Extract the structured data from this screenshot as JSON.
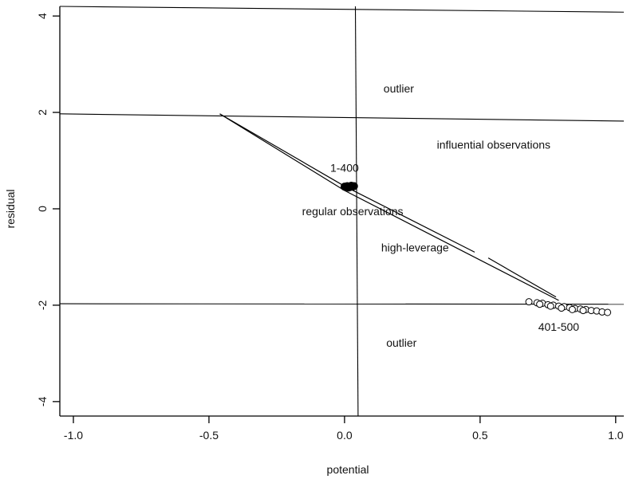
{
  "chart_data": {
    "type": "scatter",
    "title": "",
    "xlabel": "potential",
    "ylabel": "residual",
    "xlim": [
      -1.05,
      1.03
    ],
    "ylim": [
      -4.3,
      4.2
    ],
    "grid": false,
    "x_ticks": [
      {
        "value": -1.0,
        "label": "-1.0"
      },
      {
        "value": -0.5,
        "label": "-0.5"
      },
      {
        "value": 0.0,
        "label": "0.0"
      },
      {
        "value": 0.5,
        "label": "0.5"
      },
      {
        "value": 1.0,
        "label": "1.0"
      }
    ],
    "y_ticks": [
      {
        "value": 4,
        "label": "4"
      },
      {
        "value": 2,
        "label": "2"
      },
      {
        "value": 0,
        "label": "0"
      },
      {
        "value": -2,
        "label": "-2"
      },
      {
        "value": -4,
        "label": "-4"
      }
    ],
    "reference_lines": [
      {
        "name": "upper-cutoff",
        "x1": -1.05,
        "y1": 4.2,
        "x2": 1.03,
        "y2": 4.08
      },
      {
        "name": "upper-residual-cutoff",
        "x1": -1.05,
        "y1": 1.97,
        "x2": 1.03,
        "y2": 1.82
      },
      {
        "name": "lower-residual-cutoff",
        "x1": -1.05,
        "y1": -1.97,
        "x2": 1.03,
        "y2": -1.98
      },
      {
        "name": "potential-cutoff",
        "x1": 0.04,
        "y1": 4.2,
        "x2": 0.05,
        "y2": -4.3
      }
    ],
    "curves": [
      {
        "name": "upper-path",
        "dashed": false,
        "points": [
          [
            -0.46,
            1.97
          ],
          [
            0.0,
            0.47
          ],
          [
            0.48,
            -0.9
          ]
        ]
      },
      {
        "name": "upper-path-dash",
        "dashed": false,
        "points": [
          [
            0.53,
            -1.02
          ],
          [
            0.78,
            -1.83
          ]
        ]
      },
      {
        "name": "lower-path",
        "dashed": false,
        "points": [
          [
            -0.46,
            1.97
          ],
          [
            0.0,
            0.38
          ],
          [
            0.79,
            -1.9
          ]
        ]
      }
    ],
    "series": [
      {
        "marker": "filled",
        "points": [
          [
            0.0,
            0.46
          ],
          [
            0.01,
            0.47
          ],
          [
            0.02,
            0.45
          ],
          [
            0.03,
            0.46
          ],
          [
            0.015,
            0.44
          ],
          [
            0.025,
            0.48
          ],
          [
            0.005,
            0.45
          ],
          [
            0.035,
            0.47
          ]
        ]
      },
      {
        "marker": "hollow",
        "points": [
          [
            0.68,
            -1.93
          ],
          [
            0.71,
            -1.95
          ],
          [
            0.73,
            -1.96
          ],
          [
            0.75,
            -1.99
          ],
          [
            0.77,
            -2.0
          ],
          [
            0.79,
            -2.02
          ],
          [
            0.81,
            -2.03
          ],
          [
            0.83,
            -2.05
          ],
          [
            0.85,
            -2.07
          ],
          [
            0.87,
            -2.08
          ],
          [
            0.89,
            -2.09
          ],
          [
            0.91,
            -2.11
          ],
          [
            0.93,
            -2.12
          ],
          [
            0.95,
            -2.14
          ],
          [
            0.97,
            -2.15
          ],
          [
            0.72,
            -1.98
          ],
          [
            0.76,
            -2.02
          ],
          [
            0.8,
            -2.06
          ],
          [
            0.84,
            -2.09
          ],
          [
            0.88,
            -2.11
          ]
        ]
      }
    ],
    "annotations": [
      {
        "text": "outlier",
        "x": 0.2,
        "y": 2.5
      },
      {
        "text": "influential observations",
        "x": 0.55,
        "y": 1.33
      },
      {
        "text": "1-400",
        "x": 0.0,
        "y": 0.85
      },
      {
        "text": "regular observations",
        "x": 0.03,
        "y": -0.05
      },
      {
        "text": "high-leverage",
        "x": 0.26,
        "y": -0.8
      },
      {
        "text": "401-500",
        "x": 0.79,
        "y": -2.45
      },
      {
        "text": "outlier",
        "x": 0.21,
        "y": -2.78
      }
    ]
  }
}
